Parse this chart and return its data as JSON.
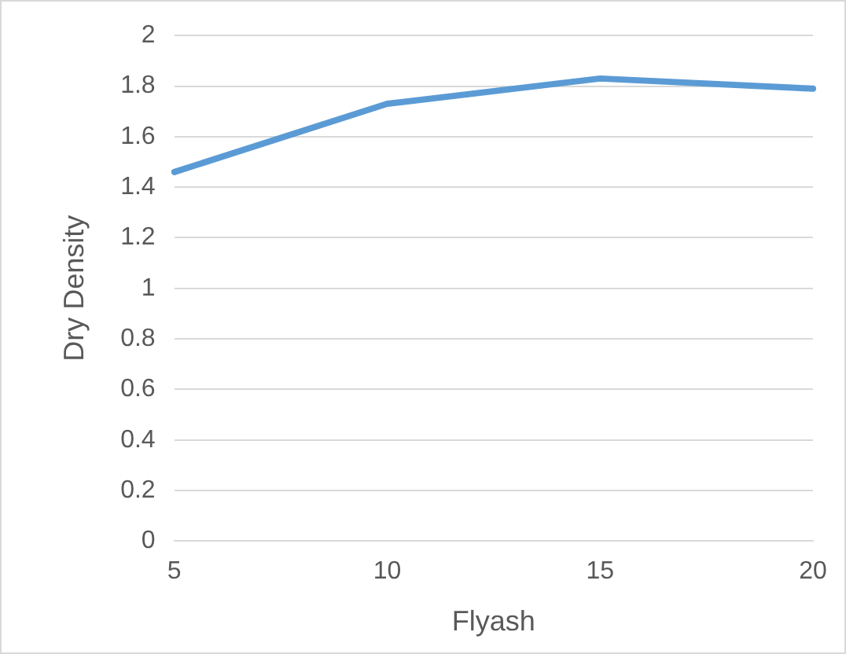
{
  "chart_data": {
    "type": "line",
    "xlabel": "Flyash",
    "ylabel": "Dry Density",
    "categories": [
      "5",
      "10",
      "15",
      "20"
    ],
    "series": [
      {
        "color": "#5b9bd5",
        "values": [
          1.46,
          1.73,
          1.83,
          1.79
        ]
      }
    ],
    "ylim": [
      0,
      2
    ],
    "yticks": [
      0,
      0.2,
      0.4,
      0.6,
      0.8,
      1,
      1.2,
      1.4,
      1.6,
      1.8,
      2
    ],
    "grid": "y",
    "legend": false,
    "marker": "none",
    "line_style": "solid"
  }
}
